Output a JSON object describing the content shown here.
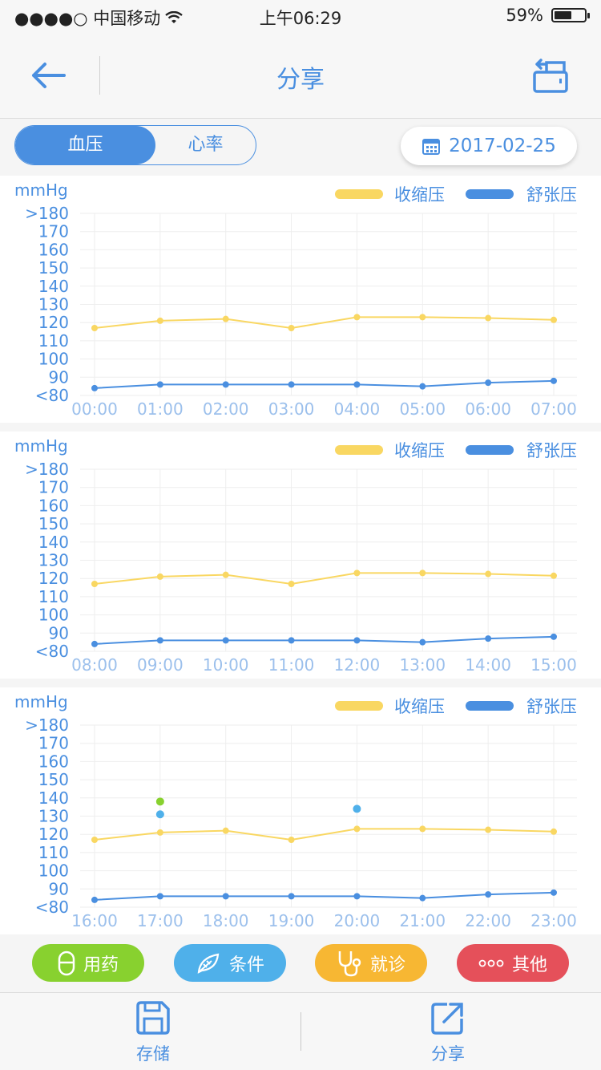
{
  "status_bar": {
    "carrier": "●●●●○ 中国移动",
    "time": "上午06:29",
    "battery": "59%",
    "battery_level": 0.59
  },
  "nav": {
    "title": "分享",
    "back_icon": "arrow-left-icon",
    "share_icon": "share-export-icon"
  },
  "toolbar": {
    "segments": [
      "血压",
      "心率"
    ],
    "active_segment": 0,
    "date": "2017-02-25"
  },
  "colors": {
    "systolic": "#f9d762",
    "diastolic": "#4a8fe0",
    "medication": "#88d12f",
    "condition": "#4fb0ea",
    "visit": "#f7b733",
    "other": "#e5505a"
  },
  "chart_data": [
    {
      "type": "line",
      "ylabel": "mmHg",
      "y_ticks": [
        ">180",
        "170",
        "160",
        "150",
        "140",
        "130",
        "120",
        "110",
        "100",
        "90",
        "<80"
      ],
      "ylim": [
        80,
        180
      ],
      "categories": [
        "00:00",
        "01:00",
        "02:00",
        "03:00",
        "04:00",
        "05:00",
        "06:00",
        "07:00"
      ],
      "series": [
        {
          "name": "收缩压",
          "values": [
            117,
            121,
            122,
            117,
            123,
            123,
            122.5,
            121.5
          ]
        },
        {
          "name": "舒张压",
          "values": [
            84,
            86,
            86,
            86,
            86,
            85,
            87,
            88
          ]
        }
      ],
      "grid": true,
      "legend": "top-right"
    },
    {
      "type": "line",
      "ylabel": "mmHg",
      "y_ticks": [
        ">180",
        "170",
        "160",
        "150",
        "140",
        "130",
        "120",
        "110",
        "100",
        "90",
        "<80"
      ],
      "ylim": [
        80,
        180
      ],
      "categories": [
        "08:00",
        "09:00",
        "10:00",
        "11:00",
        "12:00",
        "13:00",
        "14:00",
        "15:00"
      ],
      "series": [
        {
          "name": "收缩压",
          "values": [
            117,
            121,
            122,
            117,
            123,
            123,
            122.5,
            121.5
          ]
        },
        {
          "name": "舒张压",
          "values": [
            84,
            86,
            86,
            86,
            86,
            85,
            87,
            88
          ]
        }
      ],
      "grid": true,
      "legend": "top-right"
    },
    {
      "type": "line",
      "ylabel": "mmHg",
      "y_ticks": [
        ">180",
        "170",
        "160",
        "150",
        "140",
        "130",
        "120",
        "110",
        "100",
        "90",
        "<80"
      ],
      "ylim": [
        80,
        180
      ],
      "categories": [
        "16:00",
        "17:00",
        "18:00",
        "19:00",
        "20:00",
        "21:00",
        "22:00",
        "23:00"
      ],
      "series": [
        {
          "name": "收缩压",
          "values": [
            117,
            121,
            122,
            117,
            123,
            123,
            122.5,
            121.5
          ]
        },
        {
          "name": "舒张压",
          "values": [
            84,
            86,
            86,
            86,
            86,
            85,
            87,
            88
          ]
        }
      ],
      "markers": [
        {
          "category": "17:00",
          "value": 138,
          "color": "#88d12f"
        },
        {
          "category": "17:00",
          "value": 131,
          "color": "#4fb0ea"
        },
        {
          "category": "20:00",
          "value": 134,
          "color": "#4fb0ea"
        }
      ],
      "grid": true,
      "legend": "top-right"
    }
  ],
  "legend_labels": [
    "收缩压",
    "舒张压"
  ],
  "event_buttons": [
    {
      "label": "用药",
      "icon": "pill-icon",
      "color": "#88d12f"
    },
    {
      "label": "条件",
      "icon": "leaf-pen-icon",
      "color": "#4fb0ea"
    },
    {
      "label": "就诊",
      "icon": "stethoscope-icon",
      "color": "#f7b733"
    },
    {
      "label": "其他",
      "icon": "more-dots-icon",
      "color": "#e5505a"
    }
  ],
  "tabbar": [
    {
      "label": "存储",
      "icon": "save-icon"
    },
    {
      "label": "分享",
      "icon": "share-icon"
    }
  ]
}
